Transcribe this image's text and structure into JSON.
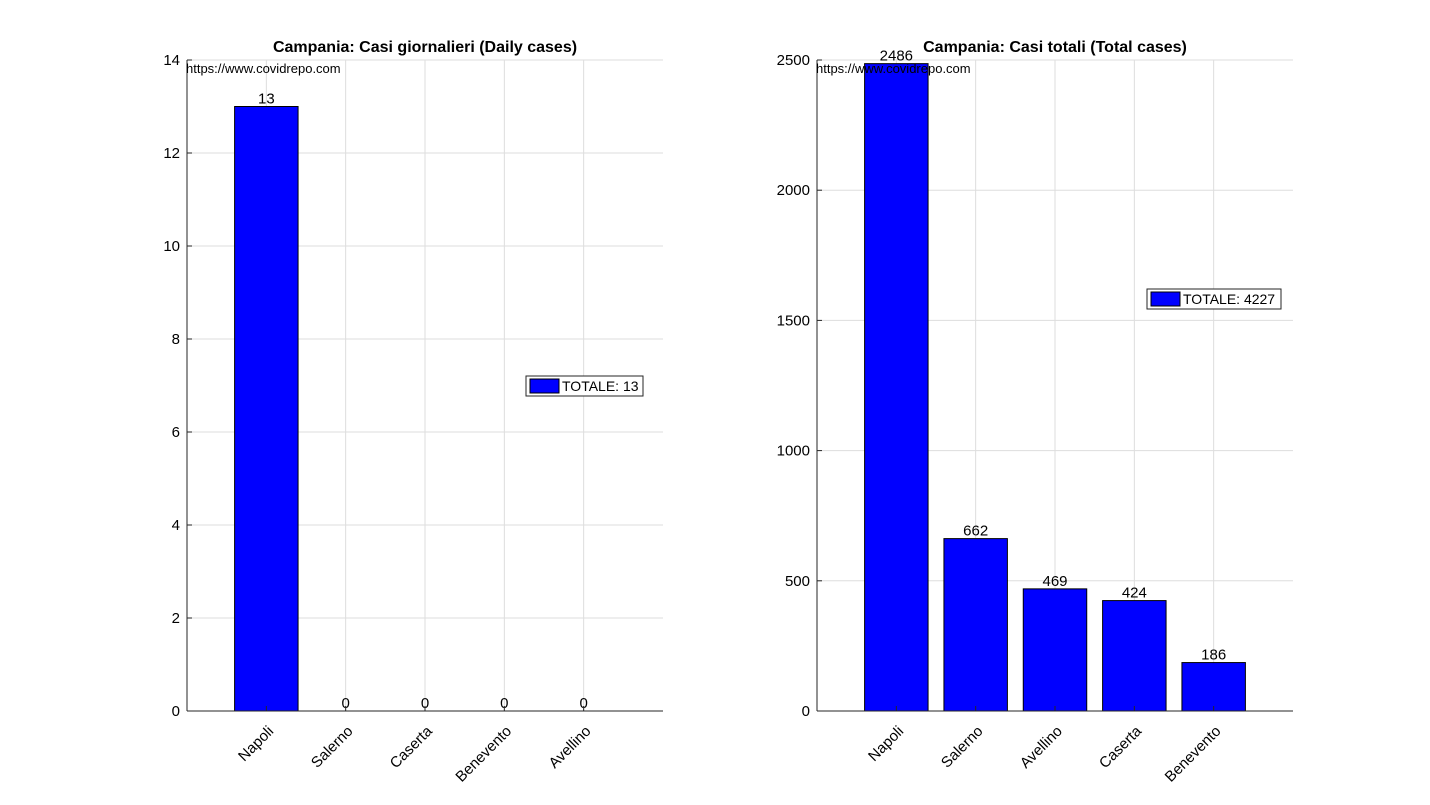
{
  "watermark": "https://www.covidrepo.com",
  "colors": {
    "bar": "#0000ff",
    "axis": "#262626",
    "grid": "#dddddd",
    "text": "#000000"
  },
  "chart_data": [
    {
      "type": "bar",
      "title": "Campania: Casi giornalieri (Daily cases)",
      "categories": [
        "Napoli",
        "Salerno",
        "Caserta",
        "Benevento",
        "Avellino"
      ],
      "values": [
        13,
        0,
        0,
        0,
        0
      ],
      "data_labels": [
        "13",
        "0",
        "0",
        "0",
        "0"
      ],
      "ylim": [
        0,
        14
      ],
      "yticks": [
        0,
        2,
        4,
        6,
        8,
        10,
        12,
        14
      ],
      "grid": true,
      "legend": {
        "text": "TOTALE: 13",
        "placement": "center-right"
      }
    },
    {
      "type": "bar",
      "title": "Campania: Casi totali (Total cases)",
      "categories": [
        "Napoli",
        "Salerno",
        "Avellino",
        "Caserta",
        "Benevento"
      ],
      "values": [
        2486,
        662,
        469,
        424,
        186
      ],
      "data_labels": [
        "2486",
        "662",
        "469",
        "424",
        "186"
      ],
      "ylim": [
        0,
        2500
      ],
      "yticks": [
        0,
        500,
        1000,
        1500,
        2000,
        2500
      ],
      "grid": true,
      "legend": {
        "text": "TOTALE: 4227",
        "placement": "upper-right"
      }
    }
  ]
}
